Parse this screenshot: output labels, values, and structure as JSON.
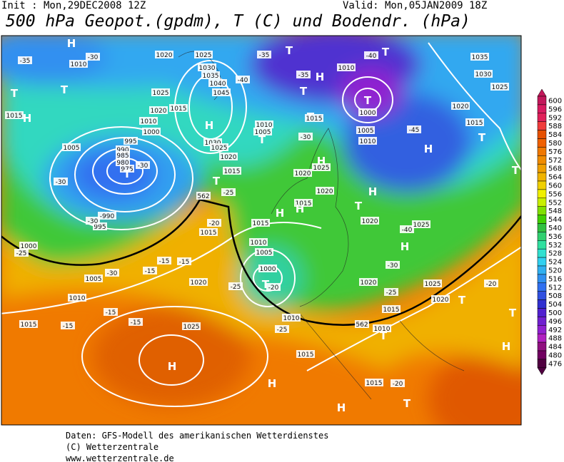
{
  "header": {
    "init": "Init : Mon,29DEC2008 12Z",
    "valid": "Valid: Mon,05JAN2009 18Z",
    "title": "500 hPa Geopot.(gpdm), T (C) und Bodendr. (hPa)"
  },
  "legend": {
    "values": [
      600,
      596,
      592,
      588,
      584,
      580,
      576,
      572,
      568,
      564,
      560,
      556,
      552,
      548,
      544,
      540,
      536,
      532,
      528,
      524,
      520,
      516,
      512,
      508,
      504,
      500,
      496,
      492,
      488,
      484,
      480,
      476
    ],
    "colors": [
      "#c2185b",
      "#d81b60",
      "#e0205a",
      "#f03c3c",
      "#e65000",
      "#f06000",
      "#f07800",
      "#f08c00",
      "#f0a000",
      "#f0b400",
      "#f0d000",
      "#f0f000",
      "#c8f000",
      "#80e000",
      "#40d000",
      "#30c040",
      "#30d070",
      "#30e0a0",
      "#30e0d0",
      "#30d0f0",
      "#30b0f0",
      "#3090f0",
      "#3070f0",
      "#3050e0",
      "#3030d0",
      "#5020d0",
      "#7020d0",
      "#9020d0",
      "#b020c0",
      "#901080",
      "#700060",
      "#500040"
    ]
  },
  "map_labels": [
    "H",
    "-35",
    "-30",
    "1010",
    "T",
    "T",
    "H",
    "1015",
    "1020",
    "1025",
    "1030",
    "1035",
    "1040",
    "1045",
    "H",
    "-40",
    "-35",
    "T",
    "1010",
    "-40",
    "T",
    "-35",
    "H",
    "T",
    "T",
    "1000",
    "1005",
    "1010",
    "-45",
    "H",
    "1035",
    "1030",
    "1025",
    "1020",
    "1015",
    "T",
    "T",
    "1025",
    "1020",
    "1015",
    "1010",
    "1000",
    "995",
    "990",
    "985",
    "980",
    "975",
    "T",
    "-30",
    "1005",
    "-30",
    "-990",
    "995",
    "-30",
    "1000",
    "-25",
    "1030",
    "1025",
    "1020",
    "1015",
    "T",
    "-25",
    "562",
    "1010",
    "1005",
    "T",
    "-30",
    "T",
    "1015",
    "H",
    "1020",
    "1025",
    "1020",
    "H",
    "T",
    "1015",
    "H",
    "H",
    "1020",
    "-40",
    "1025",
    "H",
    "1015",
    "1010",
    "1005",
    "1000",
    "T",
    "-20",
    "-30",
    "-25",
    "1020",
    "-25",
    "1025",
    "1020",
    "T",
    "1010",
    "1015",
    "562",
    "T",
    "-20",
    "T",
    "H",
    "1015",
    "-20",
    "-15",
    "-15",
    "-15",
    "1020",
    "1005",
    "-30",
    "1010",
    "-15",
    "-15",
    "1025",
    "1015",
    "-15",
    "H",
    "-25",
    "1015",
    "H",
    "1015",
    "-20",
    "T",
    "H",
    "1010"
  ],
  "footer": [
    "Daten: GFS-Modell des amerikanischen Wetterdienstes",
    "(C) Wetterzentrale",
    "www.wetterzentrale.de"
  ]
}
